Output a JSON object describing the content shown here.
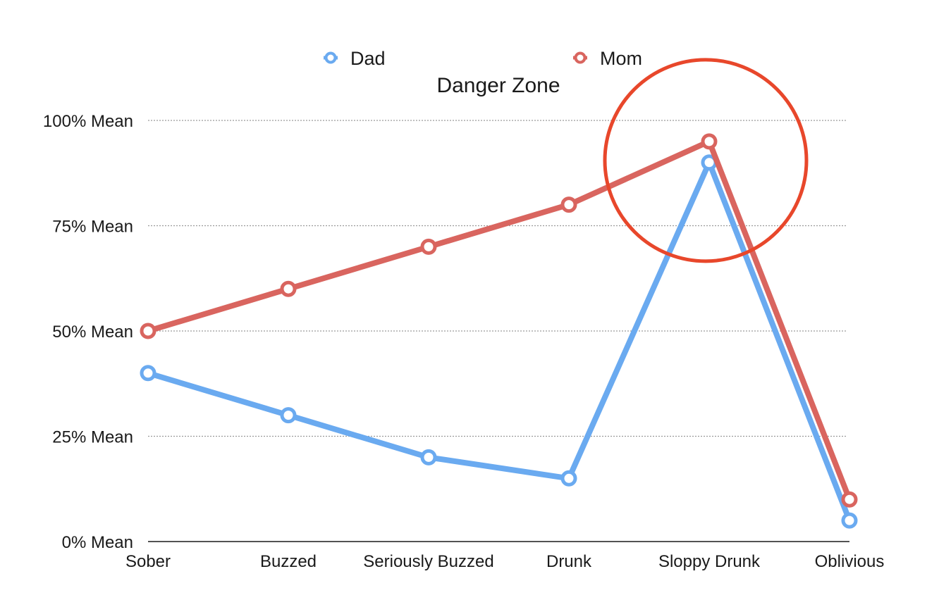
{
  "chart_data": {
    "type": "line",
    "categories": [
      "Sober",
      "Buzzed",
      "Seriously Buzzed",
      "Drunk",
      "Sloppy Drunk",
      "Oblivious"
    ],
    "series": [
      {
        "name": "Dad",
        "color": "#6aaaf0",
        "values": [
          40,
          30,
          20,
          15,
          90,
          5
        ]
      },
      {
        "name": "Mom",
        "color": "#d9655f",
        "values": [
          50,
          60,
          70,
          80,
          95,
          10
        ]
      }
    ],
    "yticks": [
      0,
      25,
      50,
      75,
      100
    ],
    "ytick_labels": [
      "0% Mean",
      "25% Mean",
      "50% Mean",
      "75% Mean",
      "100% Mean"
    ],
    "ylim": [
      0,
      100
    ],
    "grid": true,
    "legend_position": "top",
    "annotation": {
      "text": "Danger Zone",
      "target_category": "Sloppy Drunk",
      "circle_color": "#e8472b"
    }
  }
}
